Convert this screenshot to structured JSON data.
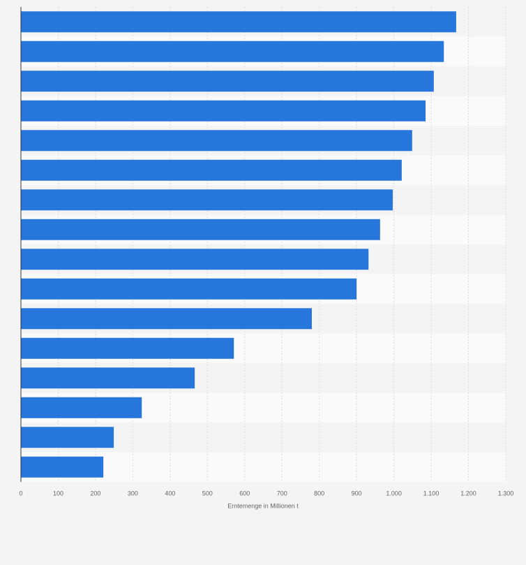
{
  "chart_data": {
    "type": "barh",
    "categories": [
      null,
      null,
      null,
      null,
      null,
      null,
      null,
      null,
      null,
      null,
      null,
      null,
      null,
      null,
      null,
      null
    ],
    "values": [
      1167,
      1134,
      1107,
      1085,
      1049,
      1021,
      997,
      963,
      932,
      900,
      780,
      571,
      466,
      324,
      249,
      221
    ],
    "color": "#2776db",
    "xlabel": "Erntemenge in Millionen t",
    "xlim": [
      0,
      1300
    ],
    "xticks": [
      0,
      100,
      200,
      300,
      400,
      500,
      600,
      700,
      800,
      900,
      {
        "value": 1000,
        "label": "1.000"
      },
      {
        "value": 1100,
        "label": "1.100"
      },
      {
        "value": 1200,
        "label": "1.200"
      },
      {
        "value": 1300,
        "label": "1.300"
      }
    ],
    "grid": true
  }
}
